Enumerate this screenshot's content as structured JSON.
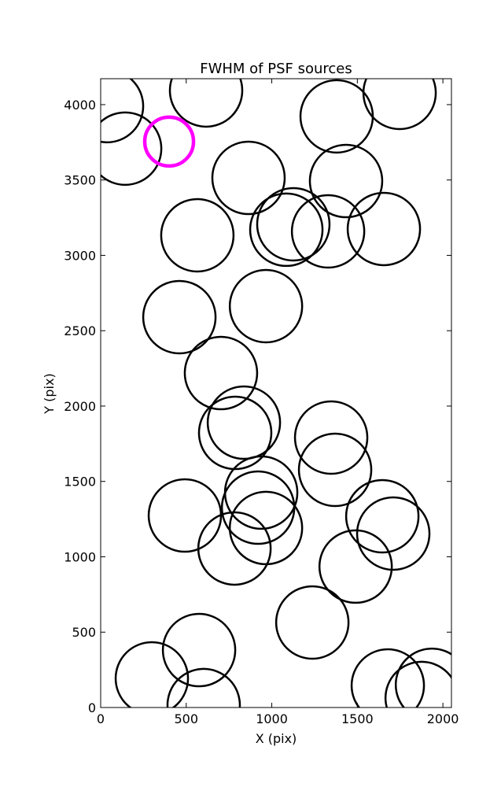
{
  "chart_data": {
    "type": "scatter",
    "title": "FWHM of PSF sources",
    "x_label": "X (pix)",
    "y_label": "Y (pix)",
    "xlim": [
      0,
      2050
    ],
    "ylim": [
      0,
      4172
    ],
    "xticks": [
      0,
      500,
      1000,
      1500,
      2000
    ],
    "yticks": [
      0,
      500,
      1000,
      1500,
      2000,
      2500,
      3000,
      3500,
      4000
    ],
    "series": [
      {
        "color": "#000000",
        "x": [
          37,
          143,
          616,
          1379,
          1747,
          864,
          1434,
          565,
          1085,
          1126,
          1329,
          1655,
          460,
          966,
          703,
          837,
          786,
          1347,
          1370,
          938,
          920,
          966,
          492,
          782,
          1646,
          1710,
          1490,
          1237,
          575,
          299,
          602,
          1678,
          1936,
          1876
        ],
        "values": [
          3990,
          3708,
          4094,
          3922,
          4078,
          3514,
          3493,
          3133,
          3170,
          3206,
          3159,
          3175,
          2590,
          2663,
          2219,
          1890,
          1822,
          1791,
          1577,
          1426,
          1326,
          1191,
          1274,
          1055,
          1269,
          1154,
          935,
          564,
          381,
          193,
          16,
          146,
          151,
          63
        ]
      },
      {
        "color": "#ff00ff",
        "x": [
          400
        ],
        "values": [
          3755
        ]
      }
    ]
  }
}
